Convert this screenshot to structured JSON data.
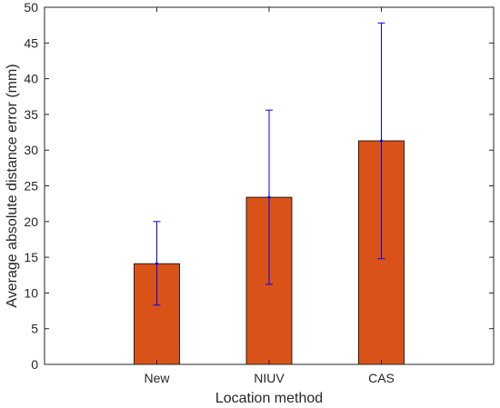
{
  "chart_data": {
    "type": "bar",
    "title": "",
    "xlabel": "Location method",
    "ylabel": "Average absolute distance error (mm)",
    "categories": [
      "New",
      "NIUV",
      "CAS"
    ],
    "values": [
      14.1,
      23.4,
      31.3
    ],
    "error_low": [
      8.3,
      11.2,
      14.8
    ],
    "error_high": [
      20.0,
      35.6,
      47.8
    ],
    "ylim": [
      0,
      50
    ],
    "yticks": [
      0,
      5,
      10,
      15,
      20,
      25,
      30,
      35,
      40,
      45,
      50
    ],
    "grid": false,
    "legend": "none",
    "bar_color": "#d95319",
    "error_color": "#0000ff"
  }
}
